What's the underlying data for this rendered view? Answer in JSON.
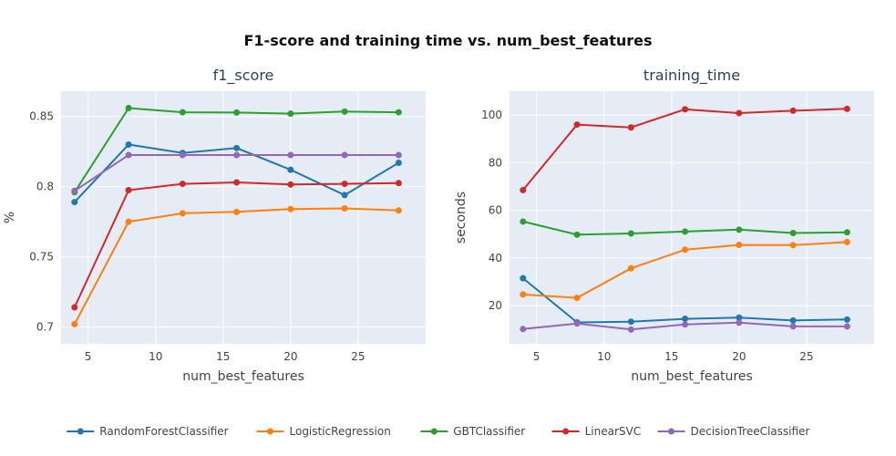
{
  "title": "F1-score and training time vs. num_best_features",
  "chart_data": [
    {
      "type": "line",
      "title": "f1_score",
      "xlabel": "num_best_features",
      "ylabel": "%",
      "x": [
        4,
        8,
        12,
        16,
        20,
        24,
        28
      ],
      "xlim": [
        3,
        30
      ],
      "ylim": [
        0.688,
        0.868
      ],
      "xticks": [
        5,
        10,
        15,
        20,
        25
      ],
      "yticks": [
        0.7,
        0.75,
        0.8,
        0.85
      ],
      "ytick_labels": [
        "0.7",
        "0.75",
        "0.8",
        "0.85"
      ],
      "grid": true,
      "series": [
        {
          "name": "RandomForestClassifier",
          "color": "#1f77b4",
          "values": [
            0.789,
            0.83,
            0.824,
            0.8275,
            0.812,
            0.794,
            0.817
          ]
        },
        {
          "name": "LogisticRegression",
          "color": "#ff7f0e",
          "values": [
            0.702,
            0.775,
            0.781,
            0.782,
            0.784,
            0.7845,
            0.783
          ]
        },
        {
          "name": "GBTClassifier",
          "color": "#2ca02c",
          "values": [
            0.796,
            0.856,
            0.853,
            0.8528,
            0.852,
            0.8535,
            0.853
          ]
        },
        {
          "name": "LinearSVC",
          "color": "#d62728",
          "values": [
            0.714,
            0.7975,
            0.802,
            0.803,
            0.8015,
            0.802,
            0.8025
          ]
        },
        {
          "name": "DecisionTreeClassifier",
          "color": "#9467bd",
          "values": [
            0.797,
            0.8225,
            0.8225,
            0.8225,
            0.8225,
            0.8225,
            0.8225
          ]
        }
      ]
    },
    {
      "type": "line",
      "title": "training_time",
      "xlabel": "num_best_features",
      "ylabel": "seconds",
      "x": [
        4,
        8,
        12,
        16,
        20,
        24,
        28
      ],
      "xlim": [
        3,
        30
      ],
      "ylim": [
        4,
        110
      ],
      "xticks": [
        5,
        10,
        15,
        20,
        25
      ],
      "yticks": [
        20,
        40,
        60,
        80,
        100
      ],
      "ytick_labels": [
        "20",
        "40",
        "60",
        "80",
        "100"
      ],
      "grid": true,
      "series": [
        {
          "name": "RandomForestClassifier",
          "color": "#1f77b4",
          "values": [
            31.5,
            13.0,
            13.3,
            14.5,
            15.0,
            13.8,
            14.2
          ]
        },
        {
          "name": "LogisticRegression",
          "color": "#ff7f0e",
          "values": [
            24.7,
            23.3,
            35.7,
            43.5,
            45.5,
            45.4,
            46.7
          ]
        },
        {
          "name": "GBTClassifier",
          "color": "#2ca02c",
          "values": [
            55.3,
            49.8,
            50.3,
            51.1,
            51.9,
            50.5,
            50.8
          ]
        },
        {
          "name": "LinearSVC",
          "color": "#d62728",
          "values": [
            68.5,
            96.0,
            94.8,
            102.4,
            100.8,
            101.8,
            102.6
          ]
        },
        {
          "name": "DecisionTreeClassifier",
          "color": "#9467bd",
          "values": [
            10.2,
            12.5,
            10.0,
            12.1,
            12.9,
            11.3,
            11.3
          ]
        }
      ]
    }
  ],
  "legend": {
    "position": "bottom",
    "items": [
      {
        "name": "RandomForestClassifier",
        "color": "#1f77b4"
      },
      {
        "name": "LogisticRegression",
        "color": "#ff7f0e"
      },
      {
        "name": "GBTClassifier",
        "color": "#2ca02c"
      },
      {
        "name": "LinearSVC",
        "color": "#d62728"
      },
      {
        "name": "DecisionTreeClassifier",
        "color": "#9467bd"
      }
    ]
  }
}
